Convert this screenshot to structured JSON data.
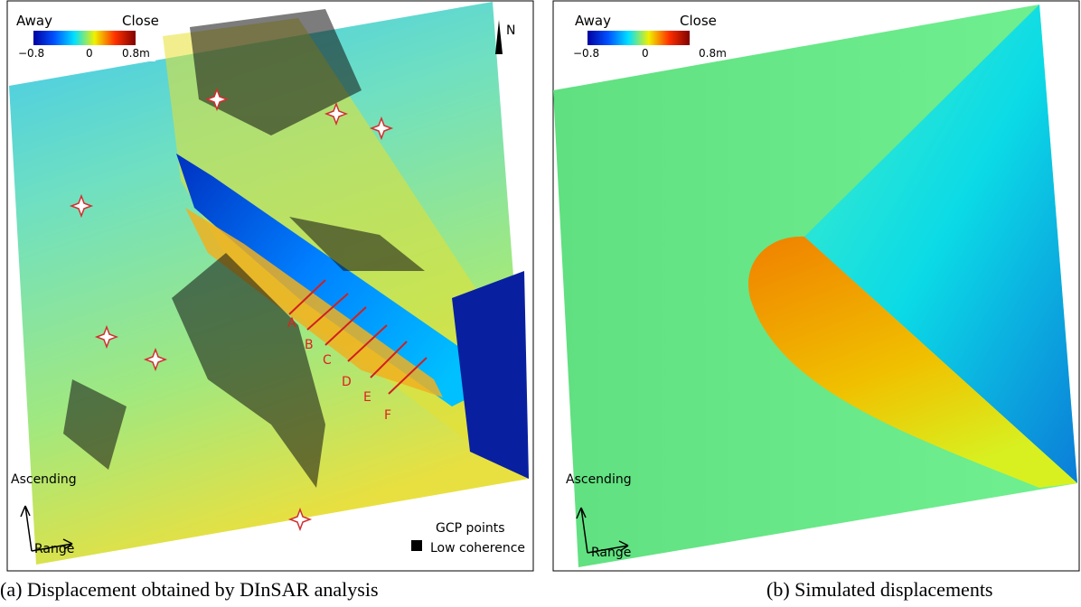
{
  "panel_a": {
    "legend": {
      "low_label": "Away",
      "high_label": "Close",
      "min": "−0.8",
      "mid": "0",
      "max": "0.8m"
    },
    "north": "N",
    "direction": {
      "flight": "Ascending",
      "look": "Range"
    },
    "profiles": [
      "A",
      "B",
      "C",
      "D",
      "E",
      "F"
    ],
    "key": {
      "gcp": "GCP points",
      "low_coherence": "Low coherence"
    },
    "caption": "(a) Displacement obtained by DInSAR analysis"
  },
  "panel_b": {
    "legend": {
      "low_label": "Away",
      "high_label": "Close",
      "min": "−0.8",
      "mid": "0",
      "max": "0.8m"
    },
    "direction": {
      "flight": "Ascending",
      "look": "Range"
    },
    "caption": "(b) Simulated displacements"
  }
}
